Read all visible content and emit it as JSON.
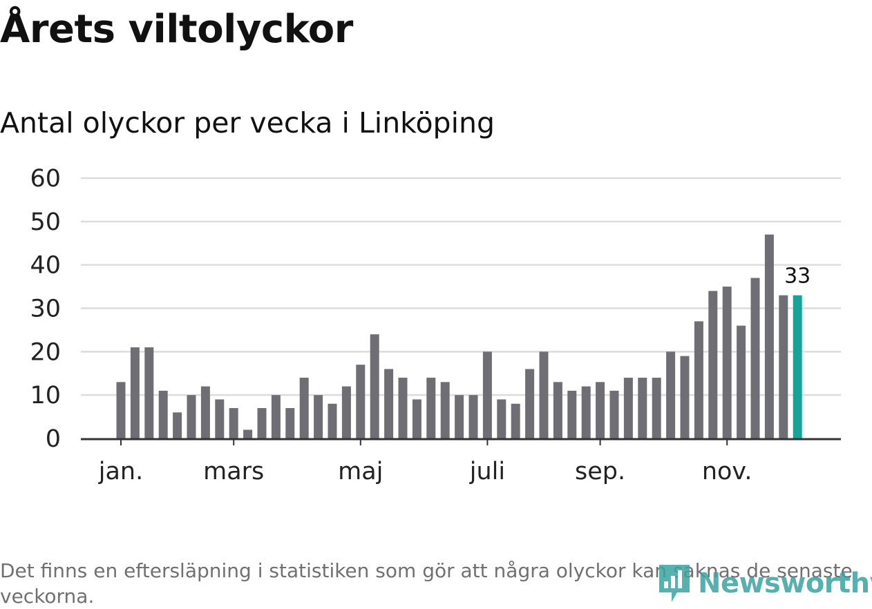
{
  "header": {
    "title": "Årets viltolyckor",
    "subtitle": "Antal olyckor per vecka i Linköping"
  },
  "footnote": "Det finns en eftersläpning i statistiken som gör att några olyckor kan saknas de senaste veckorna.",
  "brand": {
    "name": "Newsworthy",
    "icon": "newsworthy-logo-icon",
    "color": "#3aa3a0"
  },
  "colors": {
    "bar": "#6f6e74",
    "highlight": "#17a398",
    "grid": "#dcdcdc",
    "axis": "#333333"
  },
  "chart_data": {
    "type": "bar",
    "title": "Årets viltolyckor",
    "subtitle": "Antal olyckor per vecka i Linköping",
    "xlabel": "",
    "ylabel": "",
    "ylim": [
      0,
      60
    ],
    "yticks": [
      0,
      10,
      20,
      30,
      40,
      50,
      60
    ],
    "grid": true,
    "x_tick_labels": [
      {
        "label": "jan.",
        "week_index": 0
      },
      {
        "label": "mars",
        "week_index": 8
      },
      {
        "label": "maj",
        "week_index": 17
      },
      {
        "label": "juli",
        "week_index": 26
      },
      {
        "label": "sep.",
        "week_index": 34
      },
      {
        "label": "nov.",
        "week_index": 43
      }
    ],
    "values": [
      13,
      21,
      21,
      11,
      6,
      10,
      12,
      9,
      7,
      2,
      7,
      10,
      7,
      14,
      10,
      8,
      12,
      17,
      24,
      16,
      14,
      9,
      14,
      13,
      10,
      10,
      20,
      9,
      8,
      16,
      20,
      13,
      11,
      12,
      13,
      11,
      14,
      14,
      14,
      20,
      19,
      27,
      34,
      35,
      26,
      37,
      47,
      33,
      33
    ],
    "highlight_index": 48,
    "highlight_label": "33"
  }
}
